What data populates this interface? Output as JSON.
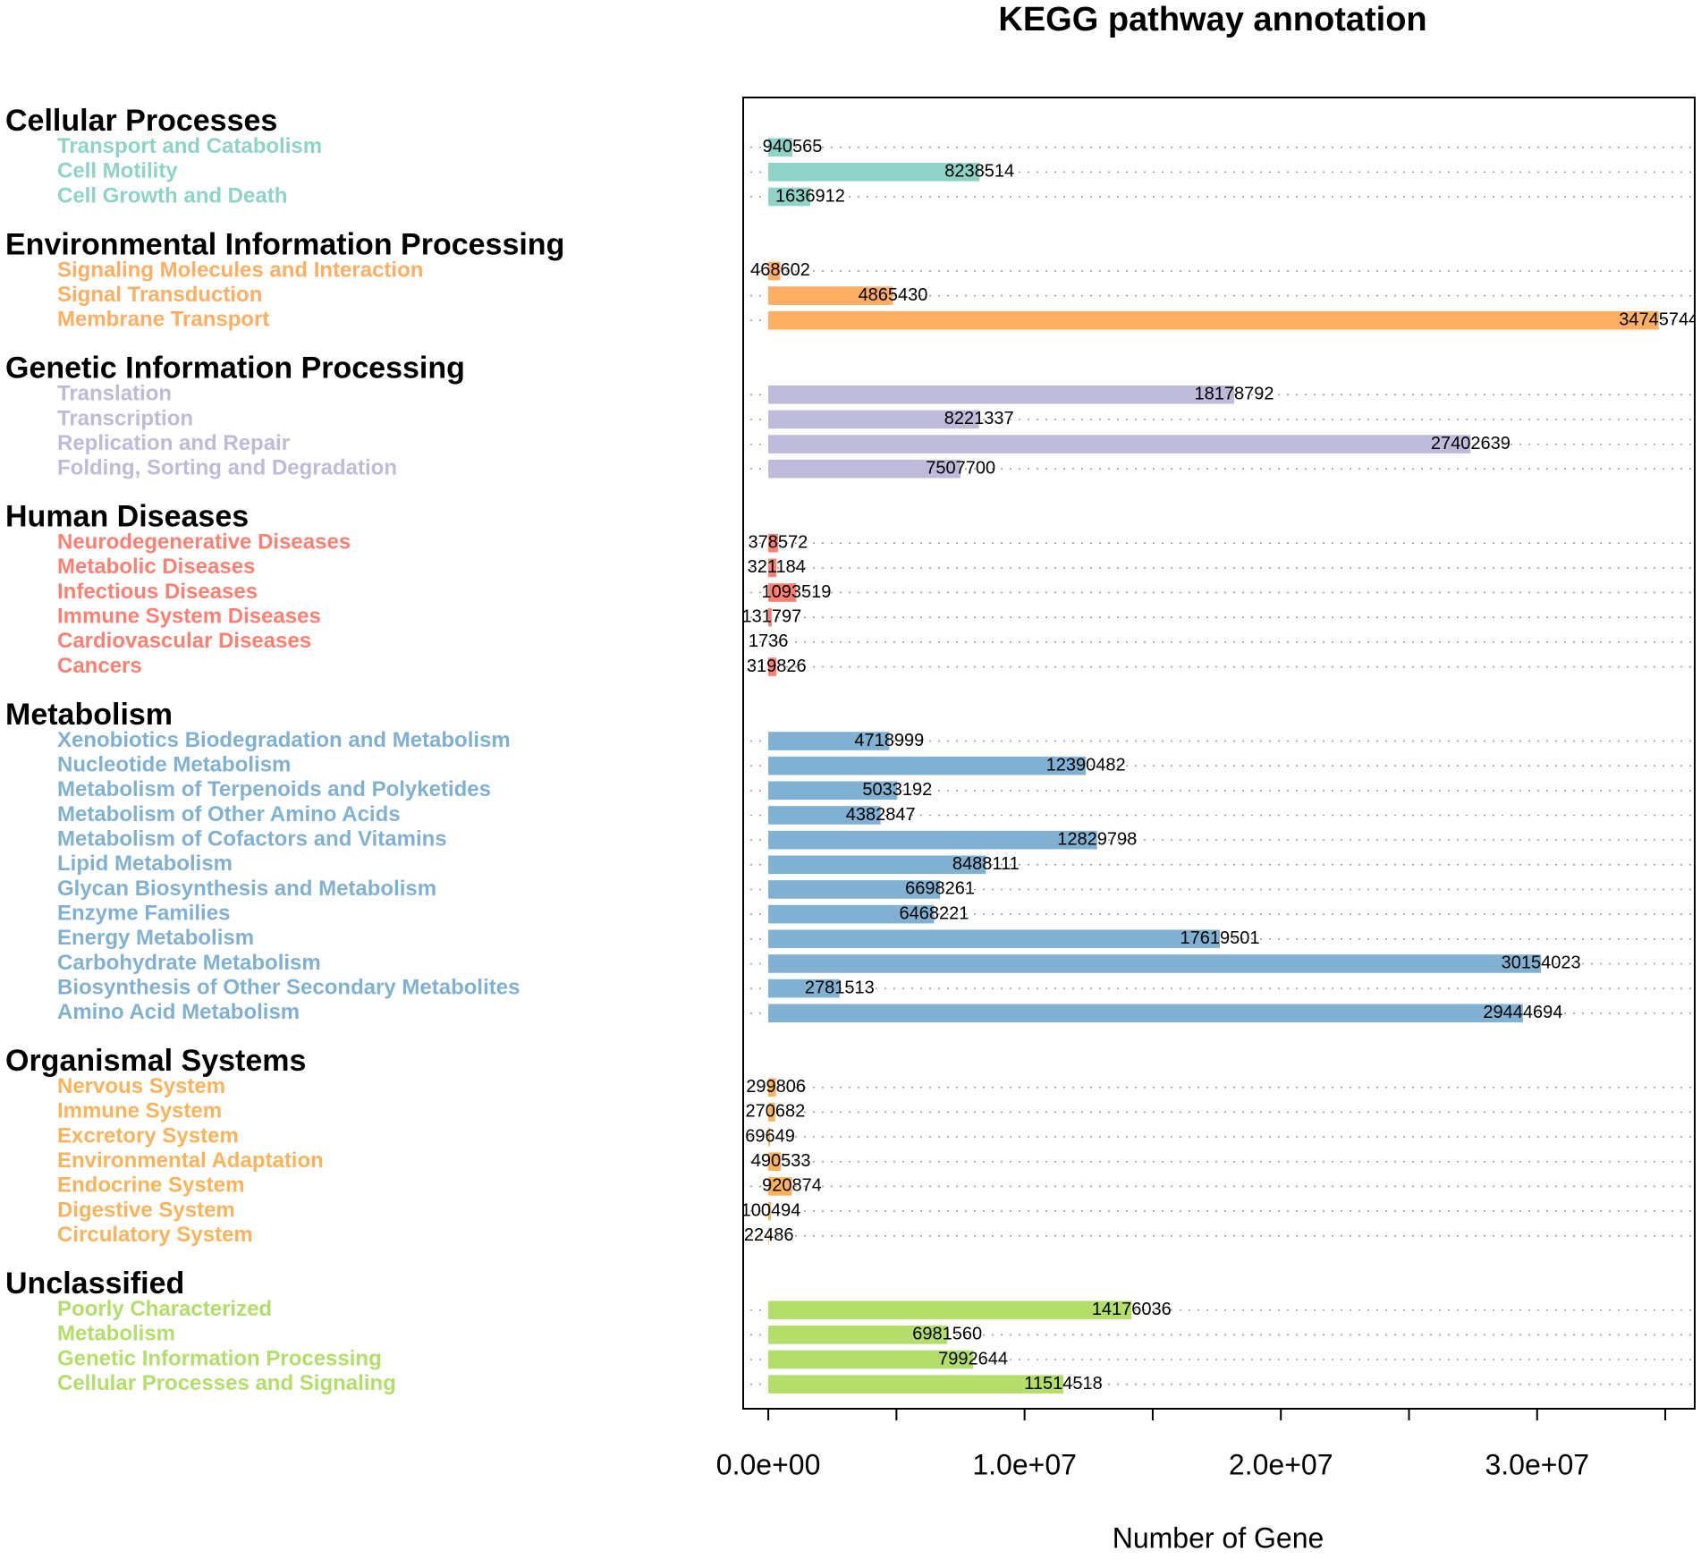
{
  "chart_data": {
    "type": "bar",
    "orientation": "horizontal",
    "title": "KEGG pathway annotation",
    "xlabel": "Number of Gene",
    "xlim": [
      -980000,
      36150000
    ],
    "xticks": [
      {
        "value": 0,
        "label": "0.0e+00"
      },
      {
        "value": 10000000,
        "label": "1.0e+07"
      },
      {
        "value": 20000000,
        "label": "2.0e+07"
      },
      {
        "value": 30000000,
        "label": "3.0e+07"
      }
    ],
    "xminor_ticks": [
      5000000,
      15000000,
      25000000,
      35000000
    ],
    "grid": true,
    "groups": [
      {
        "name": "Cellular Processes",
        "color": "#8dd3c7",
        "categories": [
          "Transport and Catabolism",
          "Cell Motility",
          "Cell Growth and Death"
        ],
        "values": [
          940565,
          8238514,
          1636912
        ]
      },
      {
        "name": "Environmental Information Processing",
        "color": "#fdae61",
        "categories": [
          "Signaling Molecules and Interaction",
          "Signal Transduction",
          "Membrane Transport"
        ],
        "values": [
          468602,
          4865430,
          34745744
        ]
      },
      {
        "name": "Genetic Information Processing",
        "color": "#bebada",
        "categories": [
          "Translation",
          "Transcription",
          "Replication and Repair",
          "Folding, Sorting and Degradation"
        ],
        "values": [
          18178792,
          8221337,
          27402639,
          7507700
        ]
      },
      {
        "name": "Human Diseases",
        "color": "#fb8072",
        "categories": [
          "Neurodegenerative Diseases",
          "Metabolic Diseases",
          "Infectious Diseases",
          "Immune System Diseases",
          "Cardiovascular Diseases",
          "Cancers"
        ],
        "values": [
          378572,
          321184,
          1093519,
          131797,
          1736,
          319826
        ]
      },
      {
        "name": "Metabolism",
        "color": "#80b1d3",
        "categories": [
          "Xenobiotics Biodegradation and Metabolism",
          "Nucleotide Metabolism",
          "Metabolism of Terpenoids and Polyketides",
          "Metabolism of Other Amino Acids",
          "Metabolism of Cofactors and Vitamins",
          "Lipid Metabolism",
          "Glycan Biosynthesis and Metabolism",
          "Enzyme Families",
          "Energy Metabolism",
          "Carbohydrate Metabolism",
          "Biosynthesis of Other Secondary Metabolites",
          "Amino Acid Metabolism"
        ],
        "values": [
          4718999,
          12390482,
          5033192,
          4382847,
          12829798,
          8488111,
          6698261,
          6468221,
          17619501,
          30154023,
          2781513,
          29444694
        ]
      },
      {
        "name": "Organismal Systems",
        "color": "#fbb35a",
        "categories": [
          "Nervous System",
          "Immune System",
          "Excretory System",
          "Environmental Adaptation",
          "Endocrine System",
          "Digestive System",
          "Circulatory System"
        ],
        "values": [
          299806,
          270682,
          69649,
          490533,
          920874,
          100494,
          22486
        ]
      },
      {
        "name": "Unclassified",
        "color": "#b3de69",
        "categories": [
          "Poorly Characterized",
          "Metabolism",
          "Genetic Information Processing",
          "Cellular Processes and Signaling"
        ],
        "values": [
          14176036,
          6981560,
          7992644,
          11514518
        ]
      }
    ]
  }
}
